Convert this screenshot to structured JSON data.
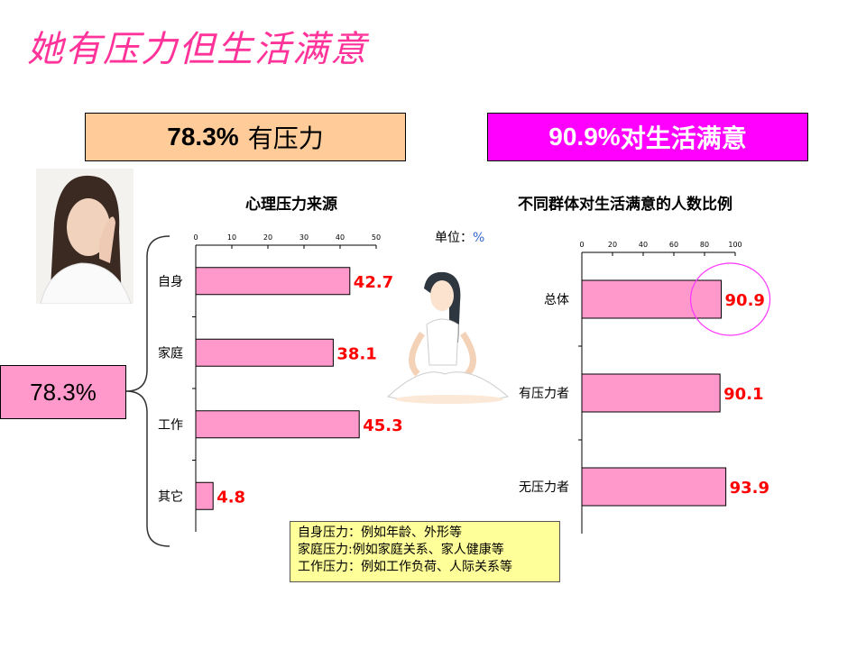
{
  "title": "她有压力但生活满意",
  "stress_box": {
    "value": "78.3%",
    "label": "有压力"
  },
  "satisfaction_box": {
    "value": "90.9%",
    "label": "对生活满意"
  },
  "bracket_box": "78.3%",
  "unit_label": "单位：",
  "unit_symbol": "%",
  "note_lines": [
    "自身压力：例如年龄、外形等",
    "家庭压力:例如家庭关系、家人健康等",
    "工作压力：例如工作负荷、人际关系等"
  ],
  "colors": {
    "bar": "#ff99cc",
    "value_label": "#ff0000",
    "title": "#ff3399",
    "highlight_circle": "#ff33ff"
  },
  "chart_data": [
    {
      "type": "bar",
      "orientation": "horizontal",
      "title": "心理压力来源",
      "categories": [
        "自身",
        "家庭",
        "工作",
        "其它"
      ],
      "values": [
        42.7,
        38.1,
        45.3,
        4.8
      ],
      "xlim": [
        0,
        50
      ],
      "xticks": [
        0,
        10,
        20,
        30,
        40,
        50
      ],
      "axis_position": "top",
      "grid": false
    },
    {
      "type": "bar",
      "orientation": "horizontal",
      "title": "不同群体对生活满意的人数比例",
      "categories": [
        "总体",
        "有压力者",
        "无压力者"
      ],
      "values": [
        90.9,
        90.1,
        93.9
      ],
      "xlim": [
        0,
        100
      ],
      "xticks": [
        0,
        20,
        40,
        60,
        80,
        100
      ],
      "axis_position": "top",
      "grid": false,
      "highlight": "总体"
    }
  ]
}
